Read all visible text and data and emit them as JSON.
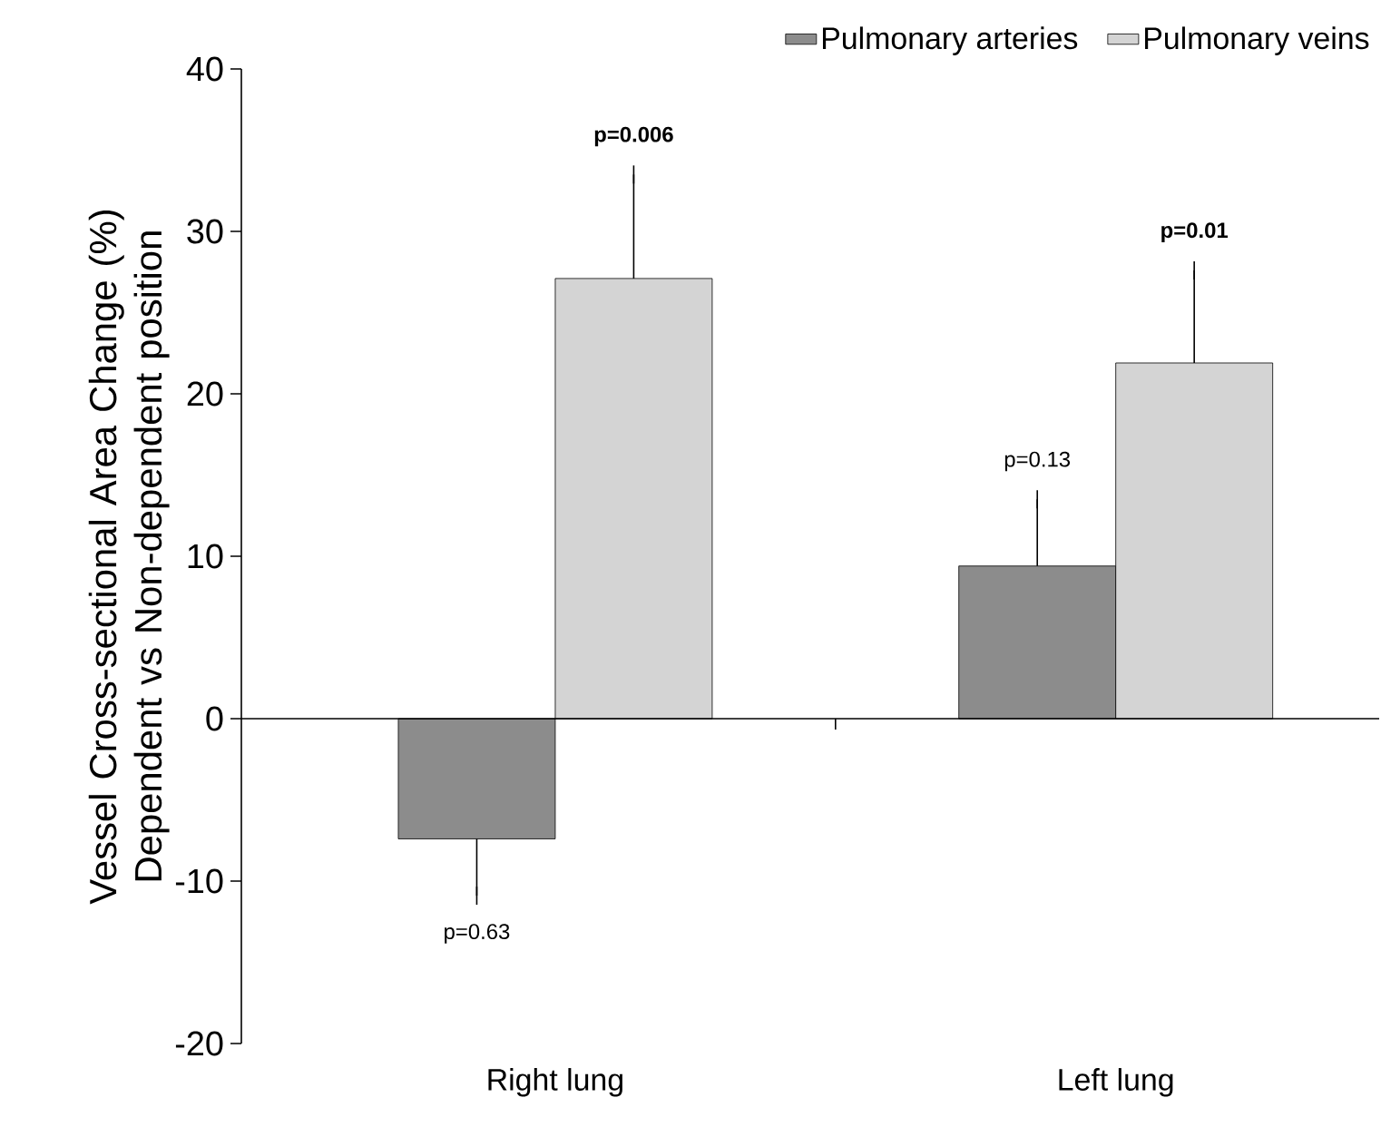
{
  "chart_data": {
    "type": "bar",
    "ylabel": "Vessel Cross-sectional Area Change (%) Dependent vs Non-dependent position",
    "categories": [
      "Right lung",
      "Left lung"
    ],
    "series": [
      {
        "name": "Pulmonary arteries",
        "color": "#8c8c8c",
        "values": [
          -7.4,
          9.4
        ],
        "errors": [
          [
            -10.9,
            -7.4
          ],
          [
            9.4,
            13.5
          ]
        ]
      },
      {
        "name": "Pulmonary veins",
        "color": "#d4d4d4",
        "values": [
          27.1,
          21.9
        ],
        "errors": [
          [
            27.1,
            33.5
          ],
          [
            21.9,
            27.6
          ]
        ]
      }
    ],
    "ylim": [
      -20,
      40
    ],
    "yticks": [
      -20,
      -10,
      0,
      10,
      20,
      30,
      40
    ],
    "legend": "top right",
    "annotations": [
      "p=0.63",
      "**p=0.006**",
      "p=0.13",
      "**p=0.01**"
    ]
  }
}
